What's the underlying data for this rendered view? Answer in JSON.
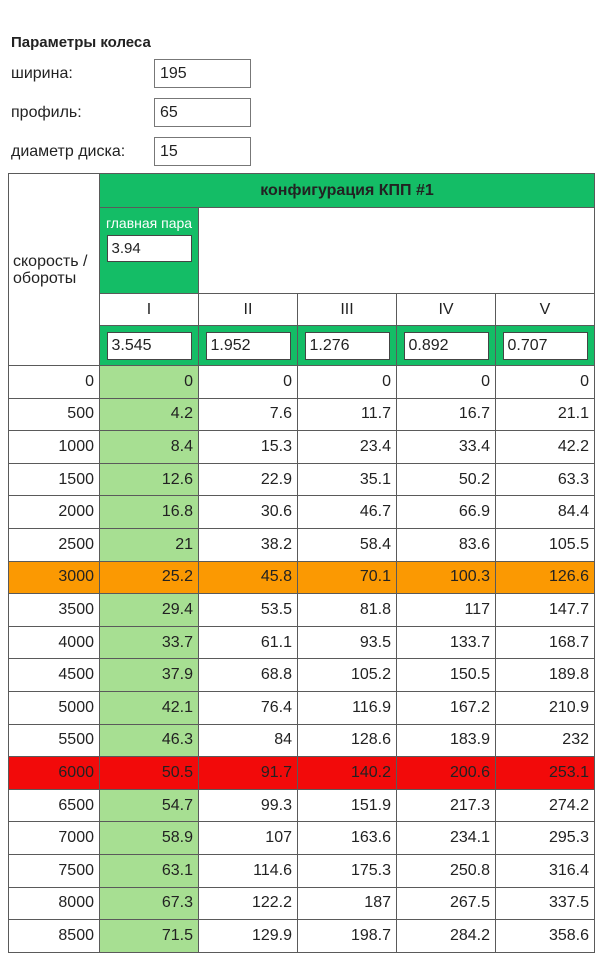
{
  "wheel": {
    "title": "Параметры колеса",
    "width_label": "ширина:",
    "width_value": "195",
    "profile_label": "профиль:",
    "profile_value": "65",
    "rim_label": "диаметр диска:",
    "rim_value": "15"
  },
  "table": {
    "corner_label": "скорость / обороты",
    "config_title": "конфигурация КПП #1",
    "main_pair_label": "главная пара",
    "main_pair_value": "3.94",
    "gears": [
      "I",
      "II",
      "III",
      "IV",
      "V"
    ],
    "ratios": [
      "3.545",
      "1.952",
      "1.276",
      "0.892",
      "0.707"
    ],
    "highlight_colors": {
      "green": "#14bd66",
      "light_green": "#a7df92",
      "orange": "#fb9902",
      "red": "#f20a0a"
    },
    "rows": [
      {
        "rpm": "0",
        "speeds": [
          "0",
          "0",
          "0",
          "0",
          "0"
        ]
      },
      {
        "rpm": "500",
        "speeds": [
          "4.2",
          "7.6",
          "11.7",
          "16.7",
          "21.1"
        ]
      },
      {
        "rpm": "1000",
        "speeds": [
          "8.4",
          "15.3",
          "23.4",
          "33.4",
          "42.2"
        ]
      },
      {
        "rpm": "1500",
        "speeds": [
          "12.6",
          "22.9",
          "35.1",
          "50.2",
          "63.3"
        ]
      },
      {
        "rpm": "2000",
        "speeds": [
          "16.8",
          "30.6",
          "46.7",
          "66.9",
          "84.4"
        ]
      },
      {
        "rpm": "2500",
        "speeds": [
          "21",
          "38.2",
          "58.4",
          "83.6",
          "105.5"
        ]
      },
      {
        "rpm": "3000",
        "speeds": [
          "25.2",
          "45.8",
          "70.1",
          "100.3",
          "126.6"
        ],
        "highlight": "orange"
      },
      {
        "rpm": "3500",
        "speeds": [
          "29.4",
          "53.5",
          "81.8",
          "117",
          "147.7"
        ]
      },
      {
        "rpm": "4000",
        "speeds": [
          "33.7",
          "61.1",
          "93.5",
          "133.7",
          "168.7"
        ]
      },
      {
        "rpm": "4500",
        "speeds": [
          "37.9",
          "68.8",
          "105.2",
          "150.5",
          "189.8"
        ]
      },
      {
        "rpm": "5000",
        "speeds": [
          "42.1",
          "76.4",
          "116.9",
          "167.2",
          "210.9"
        ]
      },
      {
        "rpm": "5500",
        "speeds": [
          "46.3",
          "84",
          "128.6",
          "183.9",
          "232"
        ]
      },
      {
        "rpm": "6000",
        "speeds": [
          "50.5",
          "91.7",
          "140.2",
          "200.6",
          "253.1"
        ],
        "highlight": "red"
      },
      {
        "rpm": "6500",
        "speeds": [
          "54.7",
          "99.3",
          "151.9",
          "217.3",
          "274.2"
        ]
      },
      {
        "rpm": "7000",
        "speeds": [
          "58.9",
          "107",
          "163.6",
          "234.1",
          "295.3"
        ]
      },
      {
        "rpm": "7500",
        "speeds": [
          "63.1",
          "114.6",
          "175.3",
          "250.8",
          "316.4"
        ]
      },
      {
        "rpm": "8000",
        "speeds": [
          "67.3",
          "122.2",
          "187",
          "267.5",
          "337.5"
        ]
      },
      {
        "rpm": "8500",
        "speeds": [
          "71.5",
          "129.9",
          "198.7",
          "284.2",
          "358.6"
        ]
      }
    ]
  }
}
